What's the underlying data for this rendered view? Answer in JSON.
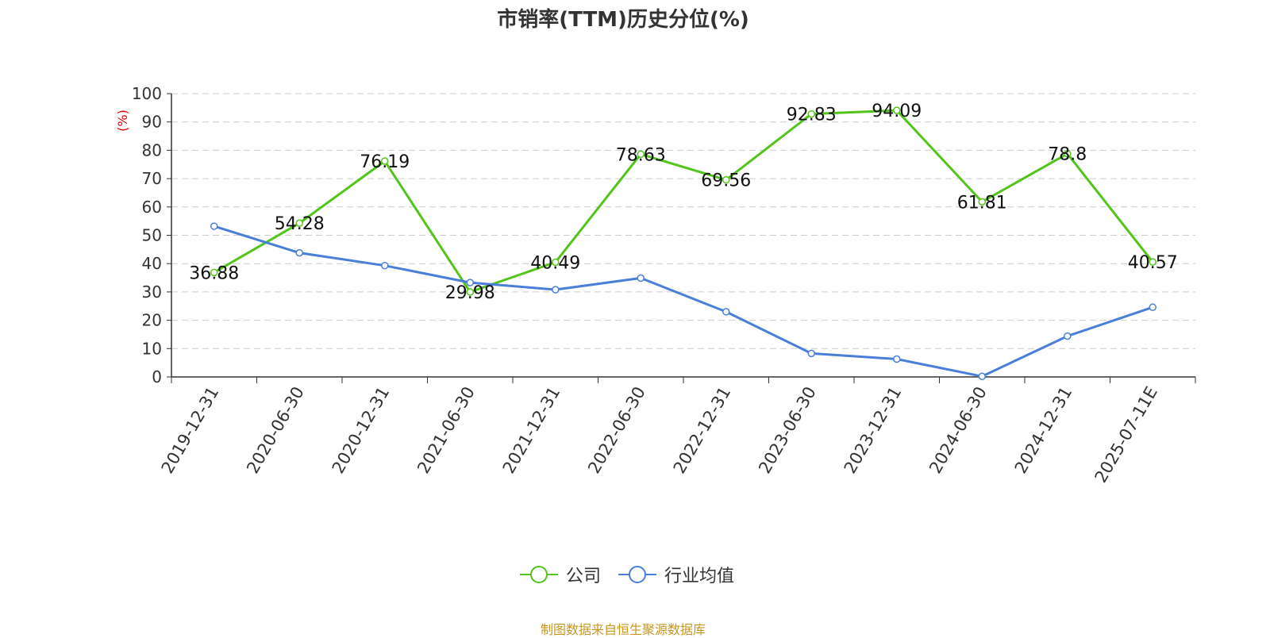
{
  "chart_data": {
    "type": "line",
    "title": "市销率(TTM)历史分位(%)",
    "ylabel": "(%)",
    "xlabel": "",
    "ylim": [
      0,
      100
    ],
    "yticks": [
      0,
      10,
      20,
      30,
      40,
      50,
      60,
      70,
      80,
      90,
      100
    ],
    "grid": true,
    "legend_position": "bottom",
    "categories": [
      "2019-12-31",
      "2020-06-30",
      "2020-12-31",
      "2021-06-30",
      "2021-12-31",
      "2022-06-30",
      "2022-12-31",
      "2023-06-30",
      "2023-12-31",
      "2024-06-30",
      "2024-12-31",
      "2025-07-11E"
    ],
    "series": [
      {
        "name": "公司",
        "color": "#52c41a",
        "values": [
          36.88,
          54.28,
          76.19,
          29.98,
          40.49,
          78.63,
          69.56,
          92.83,
          94.09,
          61.81,
          78.8,
          40.57
        ],
        "labels": [
          "36.88",
          "54.28",
          "76.19",
          "29.98",
          "40.49",
          "78.63",
          "69.56",
          "92.83",
          "94.09",
          "61.81",
          "78.8",
          "40.57"
        ]
      },
      {
        "name": "行业均值",
        "color": "#4a7fd9",
        "values": [
          53.2,
          43.8,
          39.3,
          33.3,
          30.8,
          34.9,
          23.0,
          8.3,
          6.3,
          0.2,
          14.4,
          24.6
        ]
      }
    ]
  },
  "source_text": "制图数据来自恒生聚源数据库",
  "colors": {
    "title": "#333333",
    "axis": "#333333",
    "ylabel": "#e00000",
    "grid": "#cccccc",
    "source": "#c8961e"
  }
}
